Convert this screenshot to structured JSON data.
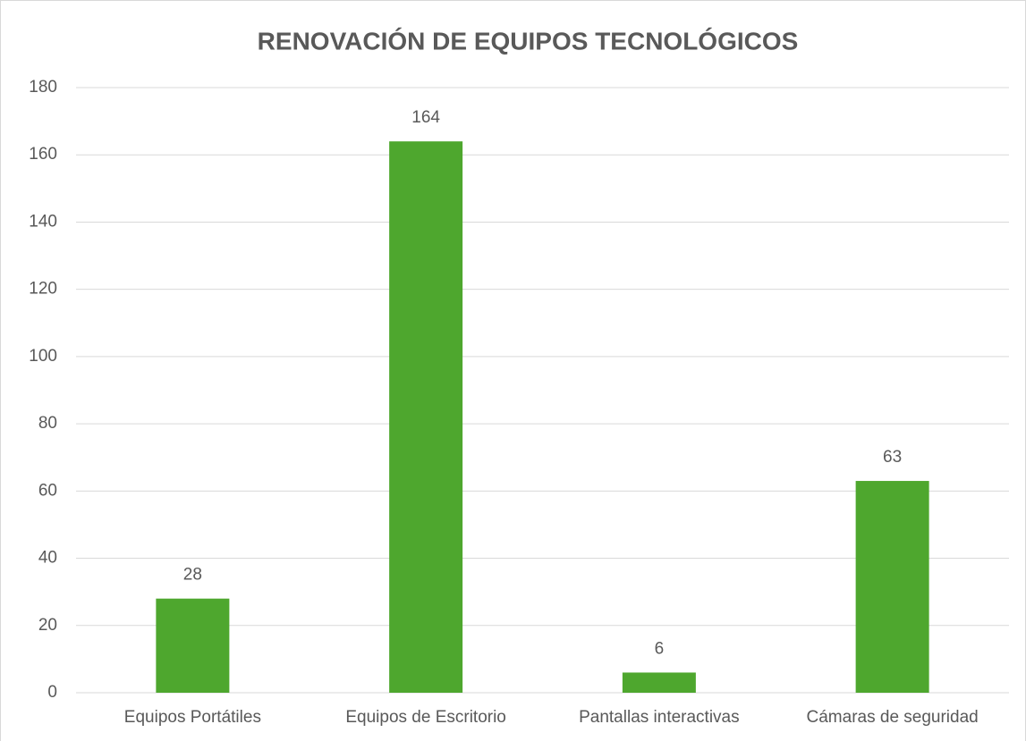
{
  "chart_data": {
    "type": "bar",
    "title": "RENOVACIÓN DE EQUIPOS TECNOLÓGICOS",
    "categories": [
      "Equipos Portátiles",
      "Equipos de Escritorio",
      "Pantallas interactivas",
      "Cámaras de seguridad"
    ],
    "values": [
      28,
      164,
      6,
      63
    ],
    "color": "#4ea72e",
    "ylim": [
      0,
      180
    ],
    "yticks": [
      0,
      20,
      40,
      60,
      80,
      100,
      120,
      140,
      160,
      180
    ],
    "grid": true,
    "data_labels": true
  }
}
